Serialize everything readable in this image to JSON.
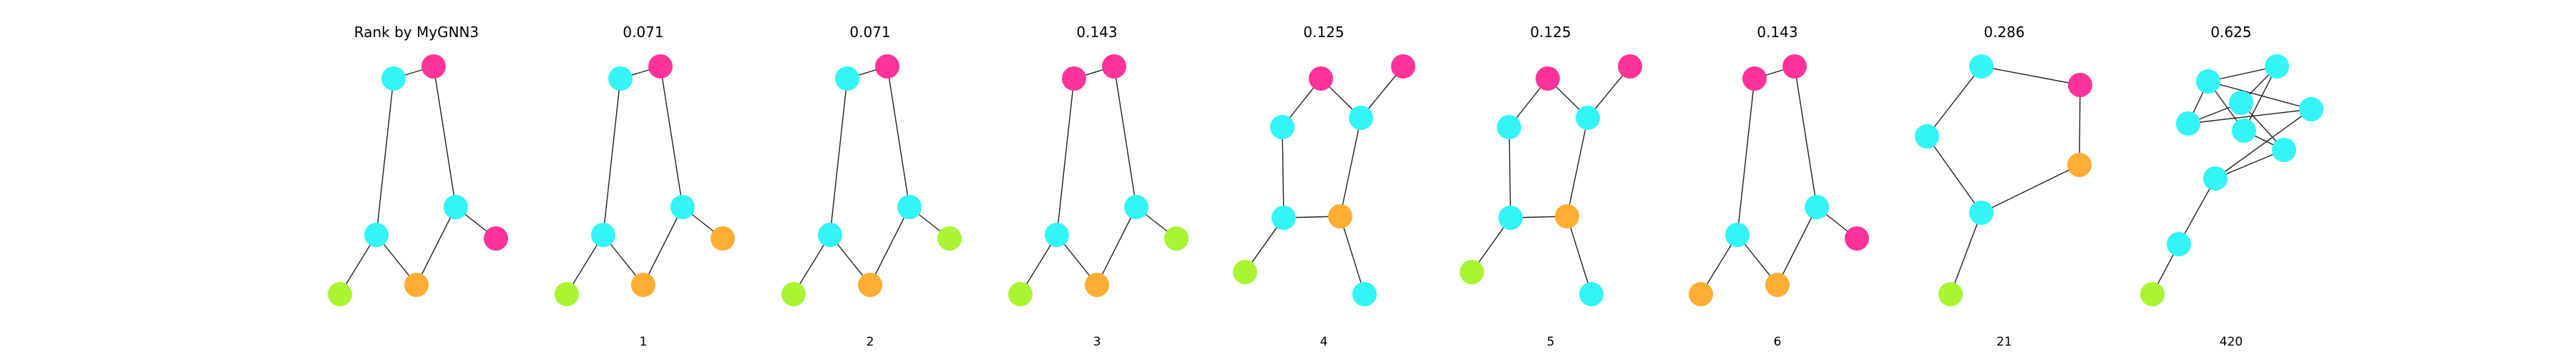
{
  "figure": {
    "colors": {
      "cyan": "#33f5f5",
      "magenta": "#ff3399",
      "orange": "#ffad33",
      "lime": "#aaf533",
      "edge": "#222222"
    },
    "panels": [
      {
        "title": "Rank by MyGNN3",
        "index": "",
        "nodes": [
          {
            "id": "a",
            "color": "cyan"
          },
          {
            "id": "b",
            "color": "magenta"
          },
          {
            "id": "c",
            "color": "cyan"
          },
          {
            "id": "d",
            "color": "cyan"
          },
          {
            "id": "e",
            "color": "magenta"
          },
          {
            "id": "f",
            "color": "lime"
          },
          {
            "id": "g",
            "color": "orange"
          }
        ],
        "edges": [
          [
            "a",
            "b"
          ],
          [
            "a",
            "c"
          ],
          [
            "b",
            "d"
          ],
          [
            "d",
            "e"
          ],
          [
            "c",
            "f"
          ],
          [
            "c",
            "g"
          ],
          [
            "d",
            "g"
          ]
        ]
      },
      {
        "title": "0.071",
        "index": "1",
        "nodes": [
          {
            "id": "a",
            "color": "cyan"
          },
          {
            "id": "b",
            "color": "magenta"
          },
          {
            "id": "c",
            "color": "cyan"
          },
          {
            "id": "d",
            "color": "cyan"
          },
          {
            "id": "e",
            "color": "orange"
          },
          {
            "id": "f",
            "color": "lime"
          },
          {
            "id": "g",
            "color": "orange"
          }
        ],
        "edges": [
          [
            "a",
            "b"
          ],
          [
            "a",
            "c"
          ],
          [
            "b",
            "d"
          ],
          [
            "d",
            "e"
          ],
          [
            "c",
            "f"
          ],
          [
            "c",
            "g"
          ],
          [
            "d",
            "g"
          ]
        ]
      },
      {
        "title": "0.071",
        "index": "2",
        "nodes": [
          {
            "id": "a",
            "color": "cyan"
          },
          {
            "id": "b",
            "color": "magenta"
          },
          {
            "id": "c",
            "color": "cyan"
          },
          {
            "id": "d",
            "color": "cyan"
          },
          {
            "id": "e",
            "color": "lime"
          },
          {
            "id": "f",
            "color": "lime"
          },
          {
            "id": "g",
            "color": "orange"
          }
        ],
        "edges": [
          [
            "a",
            "b"
          ],
          [
            "a",
            "c"
          ],
          [
            "b",
            "d"
          ],
          [
            "d",
            "e"
          ],
          [
            "c",
            "f"
          ],
          [
            "c",
            "g"
          ],
          [
            "d",
            "g"
          ]
        ]
      },
      {
        "title": "0.143",
        "index": "3",
        "nodes": [
          {
            "id": "a",
            "color": "magenta"
          },
          {
            "id": "b",
            "color": "magenta"
          },
          {
            "id": "c",
            "color": "cyan"
          },
          {
            "id": "d",
            "color": "cyan"
          },
          {
            "id": "e",
            "color": "lime"
          },
          {
            "id": "f",
            "color": "lime"
          },
          {
            "id": "g",
            "color": "orange"
          }
        ],
        "edges": [
          [
            "a",
            "b"
          ],
          [
            "a",
            "c"
          ],
          [
            "b",
            "d"
          ],
          [
            "d",
            "e"
          ],
          [
            "c",
            "f"
          ],
          [
            "c",
            "g"
          ],
          [
            "d",
            "g"
          ]
        ]
      },
      {
        "title": "0.125",
        "index": "4",
        "nodes": [
          {
            "id": "a",
            "color": "magenta"
          },
          {
            "id": "b",
            "color": "magenta"
          },
          {
            "id": "c",
            "color": "cyan"
          },
          {
            "id": "d",
            "color": "cyan"
          },
          {
            "id": "e",
            "color": "cyan"
          },
          {
            "id": "f",
            "color": "orange"
          },
          {
            "id": "g",
            "color": "lime"
          },
          {
            "id": "h",
            "color": "cyan"
          }
        ],
        "edges": [
          [
            "a",
            "c"
          ],
          [
            "a",
            "d"
          ],
          [
            "d",
            "b"
          ],
          [
            "c",
            "e"
          ],
          [
            "d",
            "f"
          ],
          [
            "e",
            "f"
          ],
          [
            "e",
            "g"
          ],
          [
            "f",
            "h"
          ]
        ]
      },
      {
        "title": "0.125",
        "index": "5",
        "nodes": [
          {
            "id": "a",
            "color": "magenta"
          },
          {
            "id": "b",
            "color": "magenta"
          },
          {
            "id": "c",
            "color": "cyan"
          },
          {
            "id": "d",
            "color": "cyan"
          },
          {
            "id": "e",
            "color": "cyan"
          },
          {
            "id": "f",
            "color": "orange"
          },
          {
            "id": "g",
            "color": "lime"
          },
          {
            "id": "h",
            "color": "cyan"
          }
        ],
        "edges": [
          [
            "a",
            "c"
          ],
          [
            "a",
            "d"
          ],
          [
            "d",
            "b"
          ],
          [
            "c",
            "e"
          ],
          [
            "d",
            "f"
          ],
          [
            "e",
            "f"
          ],
          [
            "e",
            "g"
          ],
          [
            "f",
            "h"
          ]
        ]
      },
      {
        "title": "0.143",
        "index": "6",
        "nodes": [
          {
            "id": "a",
            "color": "magenta"
          },
          {
            "id": "b",
            "color": "magenta"
          },
          {
            "id": "c",
            "color": "cyan"
          },
          {
            "id": "d",
            "color": "cyan"
          },
          {
            "id": "e",
            "color": "magenta"
          },
          {
            "id": "f",
            "color": "orange"
          },
          {
            "id": "g",
            "color": "orange"
          }
        ],
        "edges": [
          [
            "a",
            "b"
          ],
          [
            "a",
            "c"
          ],
          [
            "b",
            "d"
          ],
          [
            "d",
            "e"
          ],
          [
            "c",
            "f"
          ],
          [
            "c",
            "g"
          ],
          [
            "d",
            "g"
          ]
        ]
      },
      {
        "title": "0.286",
        "index": "21",
        "nodes": [
          {
            "id": "a",
            "color": "cyan"
          },
          {
            "id": "b",
            "color": "magenta"
          },
          {
            "id": "c",
            "color": "cyan"
          },
          {
            "id": "d",
            "color": "orange"
          },
          {
            "id": "e",
            "color": "cyan"
          },
          {
            "id": "f",
            "color": "lime"
          }
        ],
        "edges": [
          [
            "a",
            "b"
          ],
          [
            "a",
            "c"
          ],
          [
            "b",
            "d"
          ],
          [
            "c",
            "e"
          ],
          [
            "d",
            "e"
          ],
          [
            "e",
            "f"
          ]
        ]
      },
      {
        "title": "0.625",
        "index": "420",
        "nodes": [
          {
            "id": "a",
            "color": "cyan"
          },
          {
            "id": "b",
            "color": "cyan"
          },
          {
            "id": "c",
            "color": "cyan"
          },
          {
            "id": "d",
            "color": "cyan"
          },
          {
            "id": "e",
            "color": "cyan"
          },
          {
            "id": "f",
            "color": "cyan"
          },
          {
            "id": "g",
            "color": "cyan"
          },
          {
            "id": "h",
            "color": "cyan"
          },
          {
            "id": "i",
            "color": "cyan"
          },
          {
            "id": "j",
            "color": "lime"
          }
        ],
        "edges": [
          [
            "a",
            "b"
          ],
          [
            "a",
            "c"
          ],
          [
            "a",
            "e"
          ],
          [
            "a",
            "f"
          ],
          [
            "b",
            "d"
          ],
          [
            "b",
            "f"
          ],
          [
            "c",
            "d"
          ],
          [
            "c",
            "e"
          ],
          [
            "d",
            "g"
          ],
          [
            "e",
            "h"
          ],
          [
            "f",
            "g"
          ],
          [
            "g",
            "h"
          ],
          [
            "h",
            "i"
          ],
          [
            "i",
            "j"
          ]
        ]
      }
    ]
  }
}
